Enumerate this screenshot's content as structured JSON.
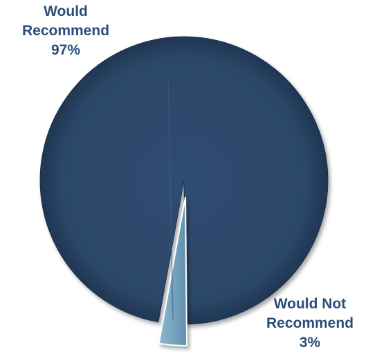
{
  "chart_data": {
    "type": "pie",
    "title": "",
    "slices": [
      {
        "label_lines": [
          "Would",
          "Recommend"
        ],
        "percent_label": "97%",
        "value": 97,
        "color": "#2e4a6e"
      },
      {
        "label_lines": [
          "Would Not",
          "Recommend"
        ],
        "percent_label": "3%",
        "value": 3,
        "color": "#7aa7c2"
      }
    ],
    "exploded_slice": "Would Not Recommend",
    "label_color": "#2a4d7a"
  }
}
